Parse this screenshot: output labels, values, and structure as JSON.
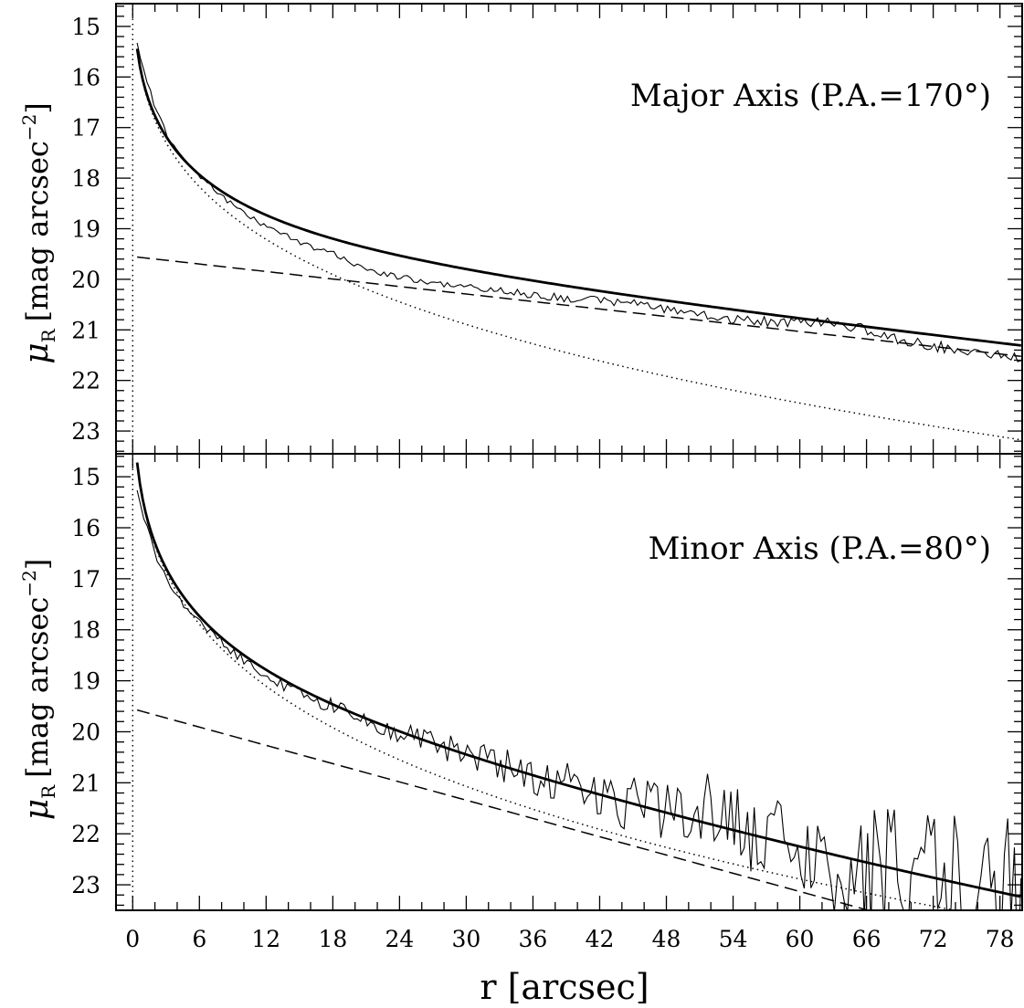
{
  "figure": {
    "xlabel": "r [arcsec]",
    "xlim": [
      -1.5,
      80
    ],
    "xticks": [
      0,
      6,
      12,
      18,
      24,
      30,
      36,
      42,
      48,
      54,
      60,
      66,
      72,
      78
    ],
    "xtick_labels": [
      "0",
      "6",
      "12",
      "18",
      "24",
      "30",
      "36",
      "42",
      "48",
      "54",
      "60",
      "66",
      "72",
      "78"
    ],
    "line_styles": {
      "observed": "thin solid",
      "total_model": "thick solid",
      "bulge_model": "dotted",
      "disk_model": "dashed",
      "center": "dotted vertical at r=0"
    }
  },
  "chart_data": [
    {
      "type": "line",
      "panel": "top",
      "annotation": "Major Axis (P.A.=170°)",
      "ylabel_symbol": "μ",
      "ylabel_subscript": "R",
      "ylabel_units": "[mag arcsec",
      "ylabel_exponent": "−2",
      "ylabel_close": "]",
      "ylim": [
        23.45,
        14.55
      ],
      "y_inverted": true,
      "yticks": [
        15,
        16,
        17,
        18,
        19,
        20,
        21,
        22,
        23
      ],
      "ytick_labels": [
        "15",
        "16",
        "17",
        "18",
        "19",
        "20",
        "21",
        "22",
        "23"
      ],
      "models": {
        "disk": {
          "mu0": 19.55,
          "slope": 0.0247
        },
        "bulge": {
          "mu_e": 21.0,
          "r_e": 31.6,
          "n": 4
        }
      },
      "observed_profile": {
        "r_start": 0.4,
        "r_step": 0.3,
        "r_end": 80,
        "anchors": [
          [
            0.4,
            15.35
          ],
          [
            1,
            15.85
          ],
          [
            2,
            16.6
          ],
          [
            3,
            17.1
          ],
          [
            4,
            17.45
          ],
          [
            6,
            17.95
          ],
          [
            8,
            18.35
          ],
          [
            10,
            18.7
          ],
          [
            12,
            18.95
          ],
          [
            14,
            19.15
          ],
          [
            16,
            19.35
          ],
          [
            18,
            19.5
          ],
          [
            20,
            19.7
          ],
          [
            22,
            19.85
          ],
          [
            24,
            19.95
          ],
          [
            26,
            20.05
          ],
          [
            28,
            20.1
          ],
          [
            30,
            20.15
          ],
          [
            32,
            20.2
          ],
          [
            34,
            20.25
          ],
          [
            36,
            20.3
          ],
          [
            38,
            20.35
          ],
          [
            40,
            20.4
          ],
          [
            42,
            20.42
          ],
          [
            44,
            20.45
          ],
          [
            46,
            20.5
          ],
          [
            48,
            20.6
          ],
          [
            50,
            20.65
          ],
          [
            52,
            20.75
          ],
          [
            54,
            20.8
          ],
          [
            56,
            20.82
          ],
          [
            58,
            20.85
          ],
          [
            60,
            20.85
          ],
          [
            62,
            20.85
          ],
          [
            64,
            20.9
          ],
          [
            66,
            21.0
          ],
          [
            68,
            21.15
          ],
          [
            70,
            21.25
          ],
          [
            72,
            21.32
          ],
          [
            74,
            21.38
          ],
          [
            76,
            21.45
          ],
          [
            78,
            21.5
          ],
          [
            80,
            21.55
          ]
        ],
        "noise": {
          "base": 0.02,
          "growth": 0.0004,
          "seed": 7
        }
      }
    },
    {
      "type": "line",
      "panel": "bottom",
      "annotation": "Minor Axis (P.A.=80°)",
      "ylabel_symbol": "μ",
      "ylabel_subscript": "R",
      "ylabel_units": "[mag arcsec",
      "ylabel_exponent": "−2",
      "ylabel_close": "]",
      "ylim": [
        23.5,
        14.55
      ],
      "y_inverted": true,
      "yticks": [
        15,
        16,
        17,
        18,
        19,
        20,
        21,
        22,
        23
      ],
      "ytick_labels": [
        "15",
        "16",
        "17",
        "18",
        "19",
        "20",
        "21",
        "22",
        "23"
      ],
      "models": {
        "disk": {
          "mu0": 19.55,
          "slope": 0.0597
        },
        "bulge": {
          "mu_e": 19.8,
          "r_e": 17.0,
          "n": 4
        }
      },
      "observed_profile": {
        "r_start": 0.4,
        "r_step": 0.3,
        "r_end": 80,
        "anchors": [
          [
            0.4,
            15.3
          ],
          [
            1,
            15.8
          ],
          [
            2,
            16.5
          ],
          [
            3,
            17.0
          ],
          [
            4,
            17.35
          ],
          [
            6,
            17.85
          ],
          [
            8,
            18.25
          ],
          [
            10,
            18.6
          ],
          [
            12,
            18.9
          ],
          [
            14,
            19.15
          ],
          [
            16,
            19.35
          ],
          [
            18,
            19.5
          ],
          [
            20,
            19.65
          ],
          [
            22,
            19.85
          ],
          [
            24,
            20.0
          ],
          [
            26,
            20.15
          ],
          [
            28,
            20.3
          ],
          [
            30,
            20.45
          ],
          [
            32,
            20.55
          ],
          [
            34,
            20.7
          ],
          [
            36,
            20.85
          ],
          [
            38,
            21.0
          ],
          [
            40,
            21.1
          ],
          [
            42,
            21.2
          ],
          [
            44,
            21.35
          ],
          [
            46,
            21.5
          ],
          [
            48,
            21.6
          ],
          [
            50,
            21.5
          ],
          [
            52,
            21.4
          ],
          [
            54,
            21.75
          ],
          [
            56,
            22.05
          ],
          [
            58,
            22.2
          ],
          [
            60,
            22.3
          ],
          [
            62,
            22.45
          ],
          [
            64,
            22.55
          ],
          [
            66,
            22.65
          ],
          [
            68,
            22.7
          ],
          [
            70,
            22.8
          ],
          [
            72,
            22.9
          ],
          [
            74,
            23.0
          ],
          [
            76,
            23.05
          ],
          [
            78,
            23.1
          ],
          [
            80,
            23.15
          ]
        ],
        "noise": {
          "base": 0.03,
          "growth": 0.0045,
          "seed": 13
        }
      }
    }
  ]
}
